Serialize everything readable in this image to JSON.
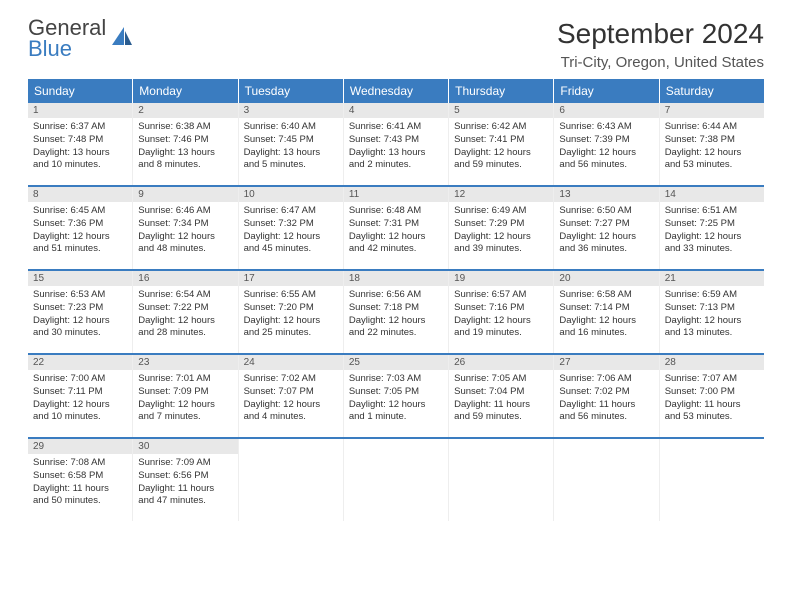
{
  "logo": {
    "line1": "General",
    "line2": "Blue"
  },
  "title": "September 2024",
  "location": "Tri-City, Oregon, United States",
  "colors": {
    "header_bg": "#3a7cc0",
    "daynum_bg": "#e8e8e8",
    "text": "#333333",
    "background": "#ffffff"
  },
  "typography": {
    "title_fontsize": 28,
    "location_fontsize": 15,
    "dayhead_fontsize": 12,
    "cell_fontsize": 9.5
  },
  "dayNames": [
    "Sunday",
    "Monday",
    "Tuesday",
    "Wednesday",
    "Thursday",
    "Friday",
    "Saturday"
  ],
  "weeks": [
    [
      {
        "n": "1",
        "sr": "6:37 AM",
        "ss": "7:48 PM",
        "dl": "13 hours and 10 minutes."
      },
      {
        "n": "2",
        "sr": "6:38 AM",
        "ss": "7:46 PM",
        "dl": "13 hours and 8 minutes."
      },
      {
        "n": "3",
        "sr": "6:40 AM",
        "ss": "7:45 PM",
        "dl": "13 hours and 5 minutes."
      },
      {
        "n": "4",
        "sr": "6:41 AM",
        "ss": "7:43 PM",
        "dl": "13 hours and 2 minutes."
      },
      {
        "n": "5",
        "sr": "6:42 AM",
        "ss": "7:41 PM",
        "dl": "12 hours and 59 minutes."
      },
      {
        "n": "6",
        "sr": "6:43 AM",
        "ss": "7:39 PM",
        "dl": "12 hours and 56 minutes."
      },
      {
        "n": "7",
        "sr": "6:44 AM",
        "ss": "7:38 PM",
        "dl": "12 hours and 53 minutes."
      }
    ],
    [
      {
        "n": "8",
        "sr": "6:45 AM",
        "ss": "7:36 PM",
        "dl": "12 hours and 51 minutes."
      },
      {
        "n": "9",
        "sr": "6:46 AM",
        "ss": "7:34 PM",
        "dl": "12 hours and 48 minutes."
      },
      {
        "n": "10",
        "sr": "6:47 AM",
        "ss": "7:32 PM",
        "dl": "12 hours and 45 minutes."
      },
      {
        "n": "11",
        "sr": "6:48 AM",
        "ss": "7:31 PM",
        "dl": "12 hours and 42 minutes."
      },
      {
        "n": "12",
        "sr": "6:49 AM",
        "ss": "7:29 PM",
        "dl": "12 hours and 39 minutes."
      },
      {
        "n": "13",
        "sr": "6:50 AM",
        "ss": "7:27 PM",
        "dl": "12 hours and 36 minutes."
      },
      {
        "n": "14",
        "sr": "6:51 AM",
        "ss": "7:25 PM",
        "dl": "12 hours and 33 minutes."
      }
    ],
    [
      {
        "n": "15",
        "sr": "6:53 AM",
        "ss": "7:23 PM",
        "dl": "12 hours and 30 minutes."
      },
      {
        "n": "16",
        "sr": "6:54 AM",
        "ss": "7:22 PM",
        "dl": "12 hours and 28 minutes."
      },
      {
        "n": "17",
        "sr": "6:55 AM",
        "ss": "7:20 PM",
        "dl": "12 hours and 25 minutes."
      },
      {
        "n": "18",
        "sr": "6:56 AM",
        "ss": "7:18 PM",
        "dl": "12 hours and 22 minutes."
      },
      {
        "n": "19",
        "sr": "6:57 AM",
        "ss": "7:16 PM",
        "dl": "12 hours and 19 minutes."
      },
      {
        "n": "20",
        "sr": "6:58 AM",
        "ss": "7:14 PM",
        "dl": "12 hours and 16 minutes."
      },
      {
        "n": "21",
        "sr": "6:59 AM",
        "ss": "7:13 PM",
        "dl": "12 hours and 13 minutes."
      }
    ],
    [
      {
        "n": "22",
        "sr": "7:00 AM",
        "ss": "7:11 PM",
        "dl": "12 hours and 10 minutes."
      },
      {
        "n": "23",
        "sr": "7:01 AM",
        "ss": "7:09 PM",
        "dl": "12 hours and 7 minutes."
      },
      {
        "n": "24",
        "sr": "7:02 AM",
        "ss": "7:07 PM",
        "dl": "12 hours and 4 minutes."
      },
      {
        "n": "25",
        "sr": "7:03 AM",
        "ss": "7:05 PM",
        "dl": "12 hours and 1 minute."
      },
      {
        "n": "26",
        "sr": "7:05 AM",
        "ss": "7:04 PM",
        "dl": "11 hours and 59 minutes."
      },
      {
        "n": "27",
        "sr": "7:06 AM",
        "ss": "7:02 PM",
        "dl": "11 hours and 56 minutes."
      },
      {
        "n": "28",
        "sr": "7:07 AM",
        "ss": "7:00 PM",
        "dl": "11 hours and 53 minutes."
      }
    ],
    [
      {
        "n": "29",
        "sr": "7:08 AM",
        "ss": "6:58 PM",
        "dl": "11 hours and 50 minutes."
      },
      {
        "n": "30",
        "sr": "7:09 AM",
        "ss": "6:56 PM",
        "dl": "11 hours and 47 minutes."
      },
      null,
      null,
      null,
      null,
      null
    ]
  ],
  "labels": {
    "sunrise": "Sunrise:",
    "sunset": "Sunset:",
    "daylight": "Daylight:"
  }
}
